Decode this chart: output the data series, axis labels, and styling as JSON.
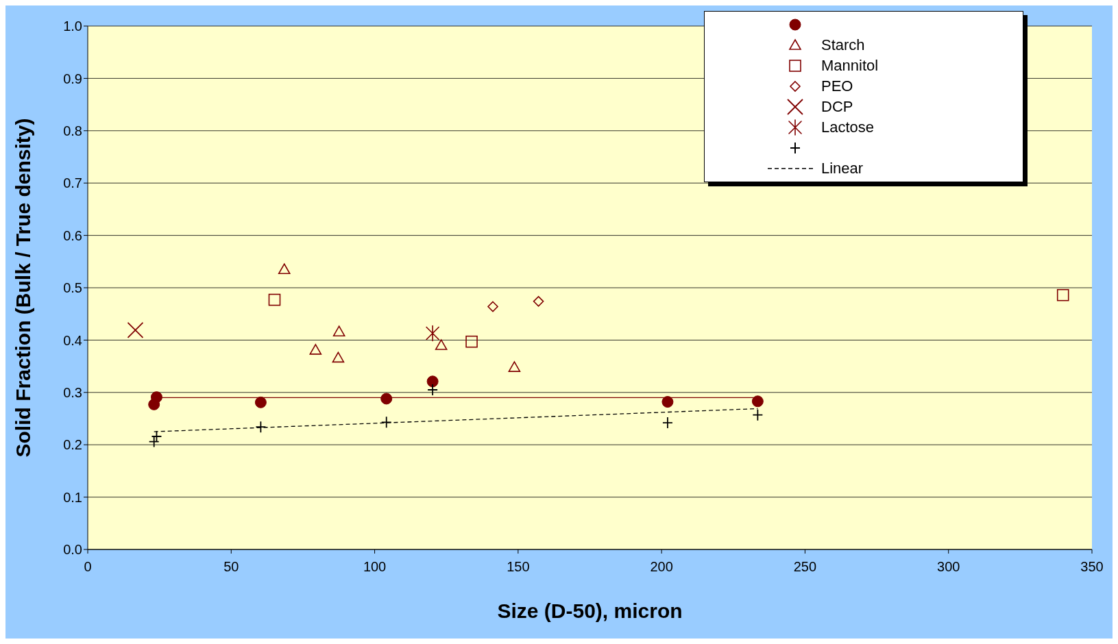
{
  "chart_data": {
    "type": "scatter",
    "xlabel": "Size (D-50), micron",
    "ylabel": "Solid Fraction (Bulk / True density)",
    "xlim": [
      0,
      350
    ],
    "xticks": [
      0,
      50,
      100,
      150,
      200,
      250,
      300,
      350
    ],
    "ylim": [
      0,
      1
    ],
    "yticks": [
      {
        "value": 0,
        "label": "0.0"
      },
      {
        "value": 0.1,
        "label": "0.1"
      },
      {
        "value": 0.2,
        "label": "0.2"
      },
      {
        "value": 0.3,
        "label": "0.3"
      },
      {
        "value": 0.4,
        "label": "0.4"
      },
      {
        "value": 0.5,
        "label": "0.5"
      },
      {
        "value": 0.6,
        "label": "0.6"
      },
      {
        "value": 0.7,
        "label": "0.7"
      },
      {
        "value": 0.8,
        "label": "0.8"
      },
      {
        "value": 0.9,
        "label": "0.9"
      },
      {
        "value": 1,
        "label": "1.0"
      }
    ],
    "grid": "y",
    "legend": "top right",
    "series": [
      {
        "marker": "circle",
        "color": "#800000",
        "x": [
          23.1,
          24,
          60.3,
          104.1,
          120.2,
          202.1,
          233.5
        ],
        "values": [
          0.277,
          0.291,
          0.281,
          0.288,
          0.321,
          0.282,
          0.283
        ]
      },
      {
        "name": "Starch",
        "marker": "triangle",
        "color": "#800000",
        "x": [
          68.5,
          79.4,
          87.6,
          87.3,
          123.2,
          148.7
        ],
        "values": [
          0.535,
          0.381,
          0.416,
          0.366,
          0.39,
          0.348
        ]
      },
      {
        "name": "Mannitol",
        "marker": "square",
        "color": "#800000",
        "x": [
          65.1,
          133.8,
          339.9
        ],
        "values": [
          0.477,
          0.397,
          0.486
        ]
      },
      {
        "name": "PEO",
        "marker": "diamond",
        "color": "#800000",
        "x": [
          141.2,
          157.1
        ],
        "values": [
          0.464,
          0.474
        ]
      },
      {
        "name": "DCP",
        "marker": "cross",
        "color": "#800000",
        "x": [
          16.6
        ],
        "values": [
          0.419
        ]
      },
      {
        "name": "Lactose",
        "color": "#800000",
        "x": [
          120.2
        ],
        "values": [
          0.413
        ]
      },
      {
        "marker": "plus",
        "color": "#000000",
        "x": [
          23.1,
          24,
          60.3,
          104.1,
          120.2,
          202.1,
          233.5
        ],
        "values": [
          0.206,
          0.216,
          0.234,
          0.243,
          0.305,
          0.242,
          0.257
        ]
      },
      {
        "type": "line",
        "name": "Linear",
        "marker": "none",
        "line_style": "dashed",
        "color": "#000000",
        "x": [
          23.1,
          233.5
        ],
        "values": [
          0.225,
          0.269
        ]
      },
      {
        "type": "line",
        "marker": "none",
        "line_style": "solid",
        "color": "#800000",
        "x": [
          24,
          233.5
        ],
        "values": [
          0.29,
          0.29
        ]
      }
    ]
  }
}
